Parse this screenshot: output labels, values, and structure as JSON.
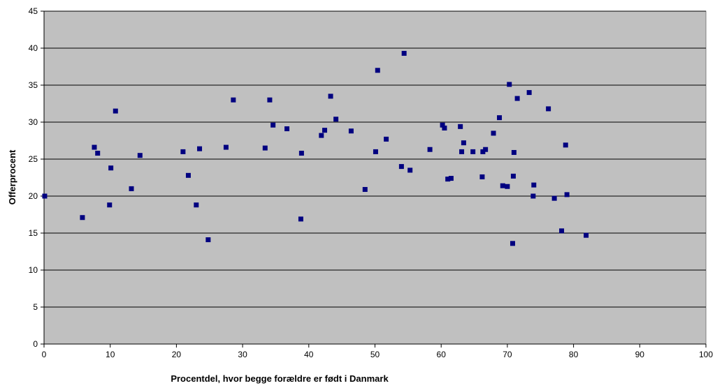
{
  "chart_data": {
    "type": "scatter",
    "title": "",
    "xlabel": "Procentdel, hvor begge forældre er født i Danmark",
    "ylabel": "Offerprocent",
    "xlim": [
      0,
      100
    ],
    "ylim": [
      0,
      45
    ],
    "xticks": [
      "0",
      "10",
      "20",
      "30",
      "40",
      "50",
      "60",
      "70",
      "80",
      "90",
      "100"
    ],
    "yticks": [
      "0",
      "5",
      "10",
      "15",
      "20",
      "25",
      "30",
      "35",
      "40",
      "45"
    ],
    "grid": "horizontal",
    "legend": "none",
    "colors": {
      "plot_background": "#c0c0c0",
      "marker": "#000080",
      "gridline": "#000000"
    },
    "series": [
      {
        "points": [
          [
            0.1,
            20.0
          ],
          [
            5.8,
            17.1
          ],
          [
            7.6,
            26.6
          ],
          [
            8.1,
            25.8
          ],
          [
            9.9,
            18.8
          ],
          [
            10.1,
            23.8
          ],
          [
            10.8,
            31.5
          ],
          [
            13.2,
            21.0
          ],
          [
            14.5,
            25.5
          ],
          [
            21.0,
            26.0
          ],
          [
            21.8,
            22.8
          ],
          [
            23.0,
            18.8
          ],
          [
            23.5,
            26.4
          ],
          [
            24.8,
            14.1
          ],
          [
            27.5,
            26.6
          ],
          [
            28.6,
            33.0
          ],
          [
            33.4,
            26.5
          ],
          [
            34.1,
            33.0
          ],
          [
            34.6,
            29.6
          ],
          [
            36.7,
            29.1
          ],
          [
            38.8,
            16.9
          ],
          [
            38.9,
            25.8
          ],
          [
            41.9,
            28.2
          ],
          [
            42.4,
            28.9
          ],
          [
            43.3,
            33.5
          ],
          [
            44.1,
            30.4
          ],
          [
            46.4,
            28.8
          ],
          [
            48.5,
            20.9
          ],
          [
            50.1,
            26.0
          ],
          [
            50.4,
            37.0
          ],
          [
            51.7,
            27.7
          ],
          [
            54.0,
            24.0
          ],
          [
            54.4,
            39.3
          ],
          [
            55.3,
            23.5
          ],
          [
            58.3,
            26.3
          ],
          [
            60.2,
            29.6
          ],
          [
            60.5,
            29.2
          ],
          [
            61.0,
            22.3
          ],
          [
            61.5,
            22.4
          ],
          [
            62.9,
            29.4
          ],
          [
            63.1,
            26.0
          ],
          [
            63.4,
            27.2
          ],
          [
            64.8,
            26.0
          ],
          [
            66.2,
            22.6
          ],
          [
            66.3,
            26.0
          ],
          [
            66.7,
            26.3
          ],
          [
            67.9,
            28.5
          ],
          [
            68.8,
            30.6
          ],
          [
            69.3,
            21.4
          ],
          [
            70.0,
            21.3
          ],
          [
            70.3,
            35.1
          ],
          [
            70.8,
            13.6
          ],
          [
            70.9,
            22.7
          ],
          [
            71.0,
            25.9
          ],
          [
            71.5,
            33.2
          ],
          [
            73.3,
            34.0
          ],
          [
            73.9,
            20.0
          ],
          [
            74.0,
            21.5
          ],
          [
            76.2,
            31.8
          ],
          [
            77.1,
            19.7
          ],
          [
            78.2,
            15.3
          ],
          [
            78.8,
            26.9
          ],
          [
            79.0,
            20.2
          ],
          [
            81.9,
            14.7
          ]
        ]
      }
    ]
  }
}
